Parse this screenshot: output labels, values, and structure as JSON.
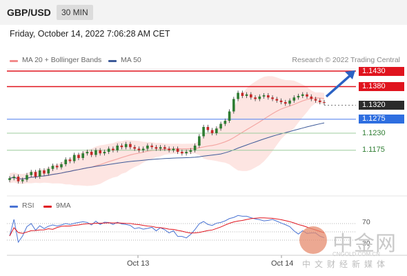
{
  "header": {
    "symbol": "GBP/USD",
    "timeframe": "30 MIN"
  },
  "datetime": "Friday, October 14, 2022 7:06:28 AM CET",
  "legend": [
    {
      "label": "MA 20 + Bollinger Bands",
      "color": "#f28b8b"
    },
    {
      "label": "MA 50",
      "color": "#3d5a99"
    }
  ],
  "credit": "Research © 2022 Trading Central",
  "levels": [
    {
      "label": "1.1430",
      "style": "box",
      "color": "#e0141e"
    },
    {
      "label": "1.1380",
      "style": "box",
      "color": "#e0141e"
    },
    {
      "label": "1.1320",
      "style": "box",
      "color": "#2b2b2b"
    },
    {
      "label": "1.1275",
      "style": "box",
      "color": "#2e6ee0"
    },
    {
      "label": "1.1230",
      "style": "text",
      "color": "#2e7d32"
    },
    {
      "label": "1.1175",
      "style": "text",
      "color": "#2e7d32"
    }
  ],
  "rsi_legend": [
    {
      "label": "RSI",
      "color": "#4a74d4"
    },
    {
      "label": "9MA",
      "color": "#e0141e"
    }
  ],
  "rsi_ticks": [
    "70",
    "30"
  ],
  "x_ticks": [
    "Oct 13",
    "Oct 14"
  ],
  "watermark": {
    "cn": "中金网",
    "url": "CNGOLD.COM.CN",
    "sub": "中文财经新媒体"
  },
  "chart_data": {
    "type": "candlestick",
    "price_range": [
      1.105,
      1.145
    ],
    "closes": [
      1.1085,
      1.109,
      1.1075,
      1.108,
      1.1095,
      1.1105,
      1.109,
      1.111,
      1.11,
      1.1115,
      1.1125,
      1.112,
      1.113,
      1.1145,
      1.114,
      1.116,
      1.115,
      1.1165,
      1.117,
      1.116,
      1.1175,
      1.1165,
      1.117,
      1.118,
      1.1175,
      1.119,
      1.1185,
      1.1195,
      1.1185,
      1.118,
      1.1175,
      1.118,
      1.119,
      1.1185,
      1.118,
      1.1185,
      1.118,
      1.1175,
      1.118,
      1.117,
      1.1165,
      1.117,
      1.1175,
      1.119,
      1.122,
      1.125,
      1.124,
      1.123,
      1.1245,
      1.126,
      1.127,
      1.13,
      1.134,
      1.136,
      1.135,
      1.1355,
      1.1345,
      1.134,
      1.1348,
      1.1352,
      1.1345,
      1.134,
      1.1335,
      1.133,
      1.1325,
      1.1335,
      1.1345,
      1.135,
      1.1355,
      1.1348,
      1.134,
      1.1335,
      1.133,
      1.1328
    ],
    "rsi_range": [
      0,
      100
    ],
    "rsi_levels": [
      70,
      30
    ],
    "arrow_target": 1.143
  }
}
